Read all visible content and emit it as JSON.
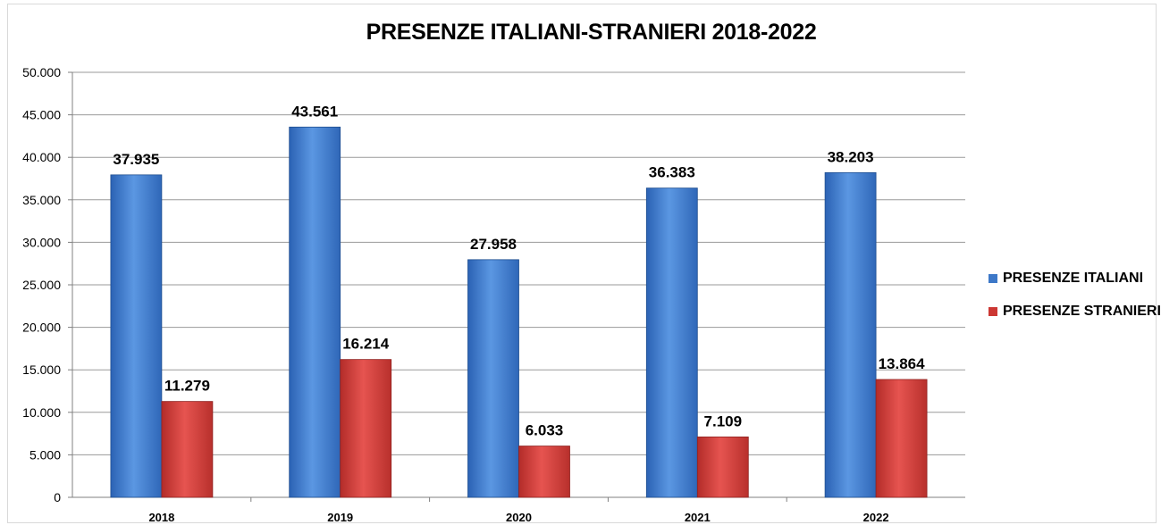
{
  "chart_data": {
    "type": "bar",
    "title": "PRESENZE ITALIANI-STRANIERI 2018-2022",
    "categories": [
      "2018",
      "2019",
      "2020",
      "2021",
      "2022"
    ],
    "series": [
      {
        "name": "PRESENZE ITALIANI",
        "values": [
          37935,
          43561,
          27958,
          36383,
          38203
        ],
        "labels": [
          "37.935",
          "43.561",
          "27.958",
          "36.383",
          "38.203"
        ],
        "color": "#4a86d6"
      },
      {
        "name": "PRESENZE STRANIERI",
        "values": [
          11279,
          16214,
          6033,
          7109,
          13864
        ],
        "labels": [
          "11.279",
          "16.214",
          "6.033",
          "7.109",
          "13.864"
        ],
        "color": "#d9413d"
      }
    ],
    "ylim": [
      0,
      50000
    ],
    "yticks": [
      0,
      5000,
      10000,
      15000,
      20000,
      25000,
      30000,
      35000,
      40000,
      45000,
      50000
    ],
    "ytick_labels": [
      "0",
      "5.000",
      "10.000",
      "15.000",
      "20.000",
      "25.000",
      "30.000",
      "35.000",
      "40.000",
      "45.000",
      "50.000"
    ],
    "grid": true,
    "legend_position": "right"
  }
}
